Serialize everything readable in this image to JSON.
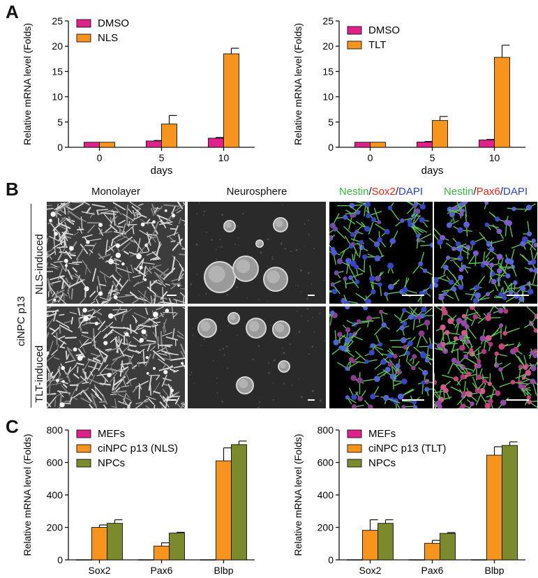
{
  "panels": {
    "a": "A",
    "b": "B",
    "c": "C"
  },
  "colors": {
    "DMSO": "#e0218a",
    "NLS": "#f7941d",
    "TLT": "#f7941d",
    "MEFs": "#e0218a",
    "NPC_ip": "#f7941d",
    "NPCs": "#7a8a2c"
  },
  "chart_data": [
    {
      "type": "bar",
      "categories": [
        "0",
        "5",
        "10"
      ],
      "xlabel": "days",
      "ylabel": "Relative mRNA level (Folds)",
      "ylim": [
        0,
        25
      ],
      "yticks": [
        0,
        5,
        10,
        15,
        20,
        25
      ],
      "legend": "top-left",
      "series": [
        {
          "name": "DMSO",
          "values": [
            1.0,
            1.25,
            1.8
          ],
          "errors": [
            0,
            0.1,
            0.15
          ]
        },
        {
          "name": "NLS",
          "values": [
            1.0,
            4.6,
            18.5
          ],
          "errors": [
            0,
            1.7,
            1.1
          ]
        }
      ]
    },
    {
      "type": "bar",
      "categories": [
        "0",
        "5",
        "10"
      ],
      "xlabel": "days",
      "ylabel": "Relative mRNA level (Folds)",
      "ylim": [
        0,
        25
      ],
      "yticks": [
        0,
        5,
        10,
        15,
        20,
        25
      ],
      "legend": "top-left",
      "series": [
        {
          "name": "DMSO",
          "values": [
            1.0,
            1.05,
            1.45
          ],
          "errors": [
            0,
            0.1,
            0.1
          ]
        },
        {
          "name": "TLT",
          "values": [
            1.0,
            5.3,
            17.8
          ],
          "errors": [
            0,
            0.8,
            2.4
          ]
        }
      ]
    },
    {
      "type": "bar",
      "categories": [
        "Sox2",
        "Pax6",
        "Blbp"
      ],
      "xlabel": "",
      "ylabel": "Relative mRNA level (Folds)",
      "ylim": [
        0,
        800
      ],
      "yticks": [
        0,
        200,
        400,
        600,
        800
      ],
      "legend": "top-left",
      "series": [
        {
          "name": "MEFs",
          "values": [
            1,
            1,
            1
          ],
          "errors": [
            0,
            0,
            0
          ]
        },
        {
          "name": "ciNPC p13 (NLS)",
          "values": [
            200,
            85,
            610
          ],
          "errors": [
            15,
            20,
            80
          ]
        },
        {
          "name": "NPCs",
          "values": [
            225,
            165,
            710
          ],
          "errors": [
            22,
            5,
            22
          ]
        }
      ]
    },
    {
      "type": "bar",
      "categories": [
        "Sox2",
        "Pax6",
        "Blbp"
      ],
      "xlabel": "",
      "ylabel": "Relative mRNA level (Folds)",
      "ylim": [
        0,
        800
      ],
      "yticks": [
        0,
        200,
        400,
        600,
        800
      ],
      "legend": "top-left",
      "series": [
        {
          "name": "MEFs",
          "values": [
            1,
            1,
            1
          ],
          "errors": [
            0,
            0,
            0
          ]
        },
        {
          "name": "ciNPC p13 (TLT)",
          "values": [
            182,
            102,
            645
          ],
          "errors": [
            65,
            18,
            52
          ]
        },
        {
          "name": "NPCs",
          "values": [
            225,
            163,
            705
          ],
          "errors": [
            22,
            5,
            22
          ]
        }
      ]
    }
  ],
  "micrographs": {
    "columns": [
      "Monolayer",
      "Neurosphere"
    ],
    "stain1": {
      "parts": [
        "Nestin",
        "/",
        "Sox2",
        "/",
        "DAPI"
      ]
    },
    "stain2": {
      "parts": [
        "Nestin",
        "/",
        "Pax6",
        "/",
        "DAPI"
      ]
    },
    "group_label": "ciNPC p13",
    "rows": [
      "NLS-induced",
      "TLT-induced"
    ]
  }
}
